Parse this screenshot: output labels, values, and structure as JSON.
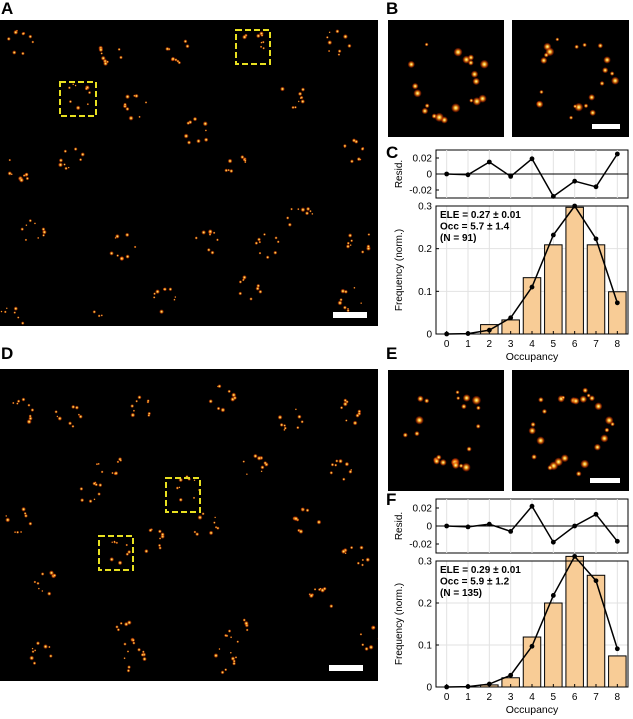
{
  "panel_labels": {
    "a": "A",
    "b": "B",
    "c": "C",
    "d": "D",
    "e": "E",
    "f": "F"
  },
  "colors": {
    "bar_fill": "#f8cc96",
    "bar_stroke": "#000000",
    "roi": "#e8e020",
    "spot_core": "#ffffbf",
    "spot_mid": "#ffb020",
    "spot_edge": "#d03000"
  },
  "chart_data": [
    {
      "type": "bar",
      "panel": "C",
      "x": [
        0,
        1,
        2,
        3,
        4,
        5,
        6,
        7,
        8
      ],
      "xlabel": "Occupancy",
      "ylabel": "Frequency (norm.)",
      "ylim": [
        0,
        0.3
      ],
      "yticks": [
        "0",
        "0.1",
        "0.2",
        "0.3"
      ],
      "bar_values": [
        0,
        0,
        0.022,
        0.033,
        0.132,
        0.209,
        0.297,
        0.209,
        0.099
      ],
      "fit_values": [
        0,
        0.001,
        0.009,
        0.038,
        0.11,
        0.232,
        0.3,
        0.223,
        0.073
      ],
      "residual": {
        "ylabel": "Resid.",
        "ylim": [
          -0.03,
          0.03
        ],
        "yticks": [
          "0.02",
          "0",
          "-0.02"
        ],
        "values": [
          0,
          -0.001,
          0.015,
          -0.003,
          0.019,
          -0.028,
          -0.009,
          -0.016,
          0.025
        ]
      },
      "annotation": [
        "ELE = 0.27 ± 0.01",
        "Occ = 5.7 ± 1.4",
        "(N = 91)"
      ]
    },
    {
      "type": "bar",
      "panel": "F",
      "x": [
        0,
        1,
        2,
        3,
        4,
        5,
        6,
        7,
        8
      ],
      "xlabel": "Occupancy",
      "ylabel": "Frequency (norm.)",
      "ylim": [
        0,
        0.3
      ],
      "yticks": [
        "0",
        "0.1",
        "0.2",
        "0.3"
      ],
      "bar_values": [
        0,
        0,
        0.005,
        0.022,
        0.119,
        0.2,
        0.311,
        0.266,
        0.074
      ],
      "fit_values": [
        0,
        0.001,
        0.007,
        0.028,
        0.097,
        0.218,
        0.311,
        0.253,
        0.091
      ],
      "residual": {
        "ylabel": "Resid.",
        "ylim": [
          -0.03,
          0.03
        ],
        "yticks": [
          "0.02",
          "0",
          "-0.02"
        ],
        "values": [
          0,
          -0.001,
          0.002,
          -0.006,
          0.022,
          -0.018,
          0,
          0.013,
          -0.017
        ]
      },
      "annotation": [
        "ELE = 0.29 ± 0.01",
        "Occ = 5.9 ± 1.2",
        "(N = 135)"
      ]
    }
  ]
}
